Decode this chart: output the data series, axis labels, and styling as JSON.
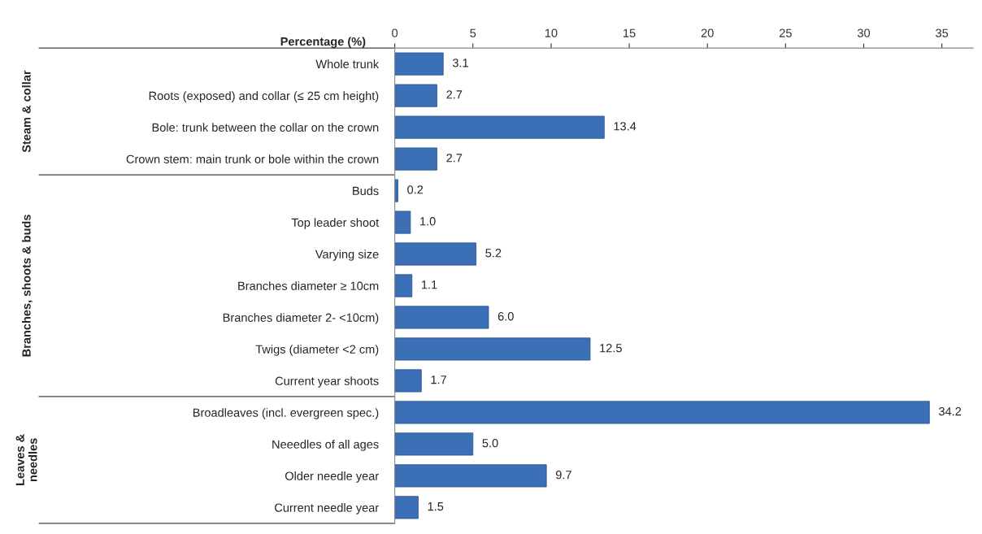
{
  "chart_data": {
    "type": "bar",
    "orientation": "horizontal",
    "xlabel": "Percentage (%)",
    "categories": [
      "Whole trunk",
      "Roots (exposed) and collar (≤ 25 cm height)",
      "Bole: trunk between the collar on the crown",
      "Crown stem: main trunk or bole within the crown",
      "Buds",
      "Top leader shoot",
      "Varying size",
      "Branches diameter ≥ 10cm",
      "Branches diameter 2- <10cm)",
      "Twigs (diameter <2 cm)",
      "Current year shoots",
      "Broadleaves (incl. evergreen spec.)",
      "Neeedles of all ages",
      "Older needle year",
      "Current needle year"
    ],
    "values": [
      3.1,
      2.7,
      13.4,
      2.7,
      0.2,
      1.0,
      5.2,
      1.1,
      6.0,
      12.5,
      1.7,
      34.2,
      5.0,
      9.7,
      1.5
    ],
    "value_labels": [
      "3.1",
      "2.7",
      "13.4",
      "2.7",
      "0.2",
      "1.0",
      "5.2",
      "1.1",
      "6.0",
      "12.5",
      "1.7",
      "34.2",
      "5.0",
      "9.7",
      "1.5"
    ],
    "color": "#3b6fb6",
    "xlim": [
      0,
      37
    ],
    "xticks": [
      0,
      5,
      10,
      15,
      20,
      25,
      30,
      35
    ],
    "annotations": [
      "Steam & collar",
      "Branches, shoots & buds",
      "Leaves &\nneedles"
    ],
    "grid": false
  }
}
